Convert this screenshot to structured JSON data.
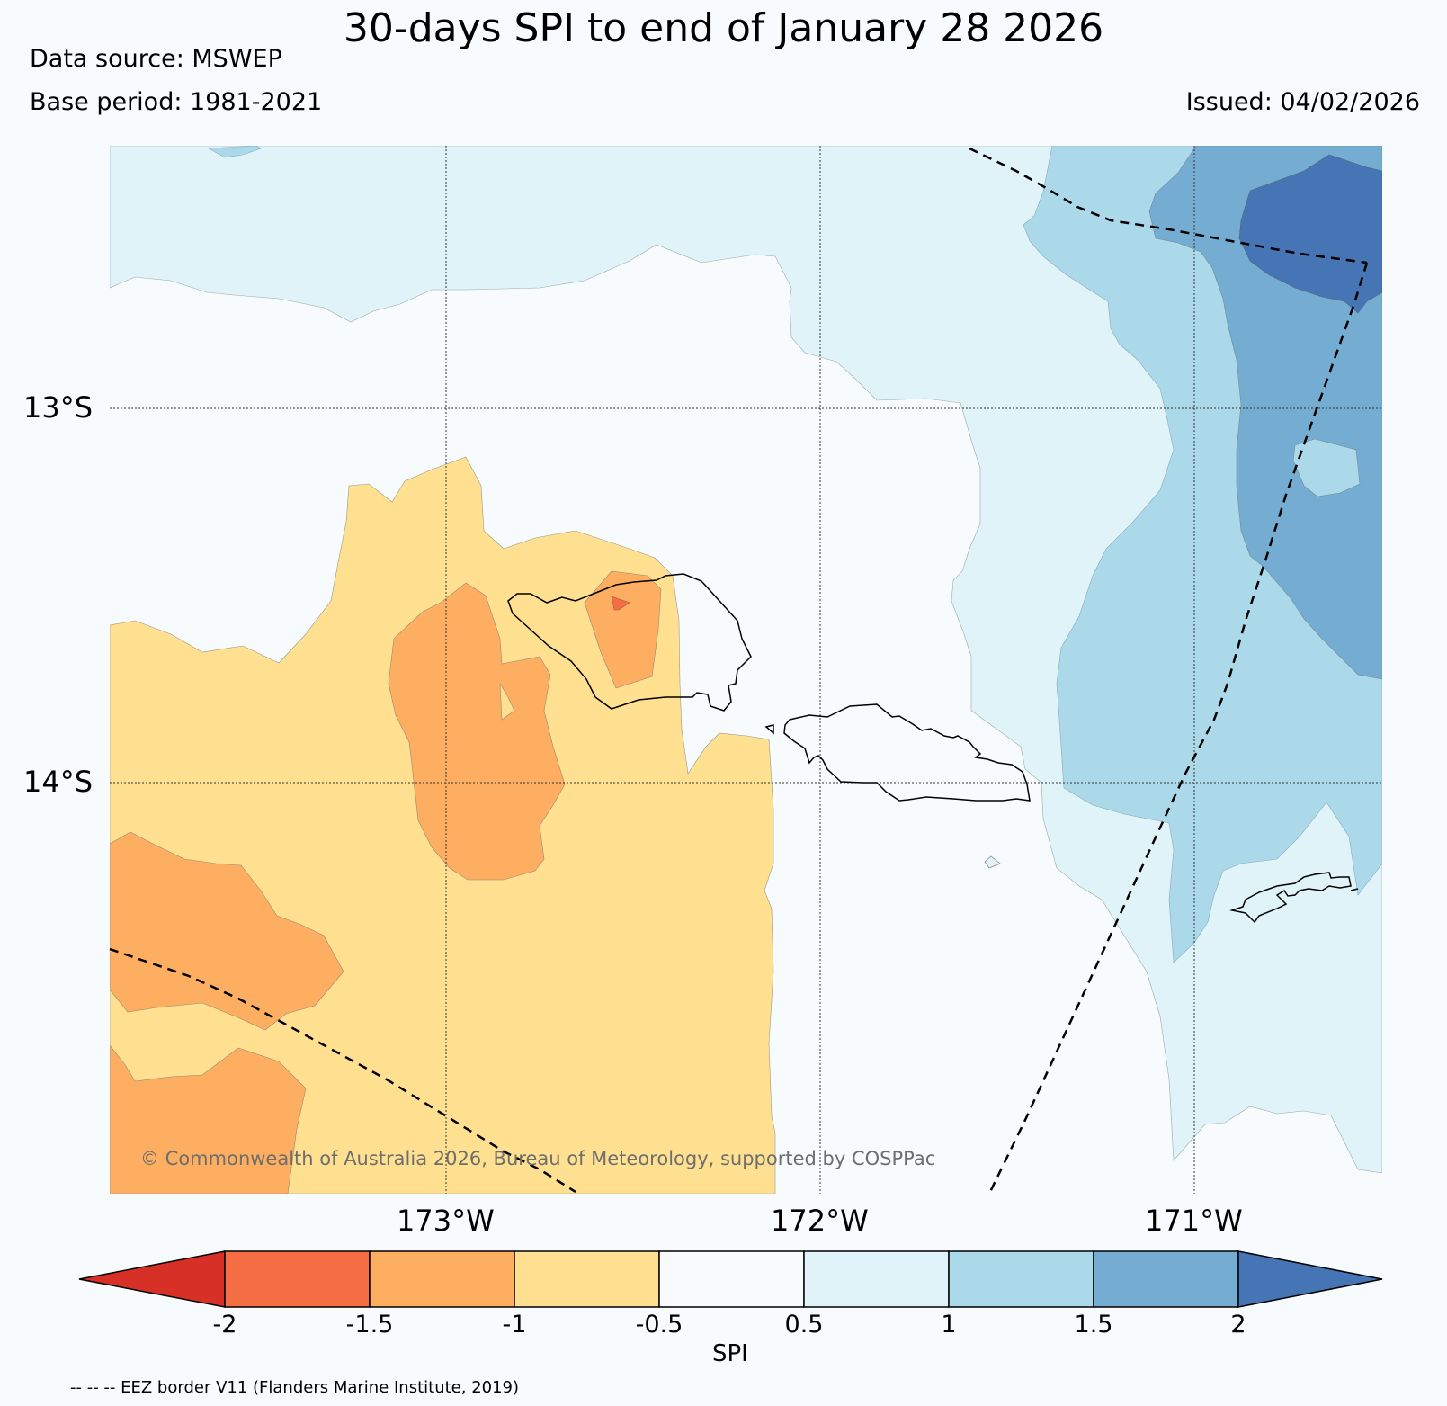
{
  "header": {
    "title": "30-days SPI to end of January 28 2026",
    "data_source": "Data source: MSWEP",
    "base_period": "Base period: 1981-2021",
    "issued": "Issued: 04/02/2026"
  },
  "map": {
    "lat_labels": [
      "13°S",
      "14°S"
    ],
    "lon_labels": [
      "173°W",
      "172°W",
      "171°W"
    ],
    "copyright": "© Commonwealth of Australia 2026, Bureau of Meteorology, supported by COSPPac"
  },
  "legend": {
    "label": "SPI",
    "ticks": [
      "-2",
      "-1.5",
      "-1",
      "-0.5",
      "0.5",
      "1",
      "1.5",
      "2"
    ],
    "colors": {
      "below_-2": "#d73027",
      "-2_-1.5": "#f46d43",
      "-1.5_-1": "#fdae61",
      "-1_-0.5": "#fee090",
      "-0.5_0.5": "#f7fbfd",
      "0.5_1": "#e0f3f8",
      "1_1.5": "#abd9e9",
      "1.5_2": "#74add1",
      "above_2": "#4575b4"
    },
    "eez_note": "-- -- -- EEZ border V11 (Flanders Marine Institute, 2019)"
  }
}
